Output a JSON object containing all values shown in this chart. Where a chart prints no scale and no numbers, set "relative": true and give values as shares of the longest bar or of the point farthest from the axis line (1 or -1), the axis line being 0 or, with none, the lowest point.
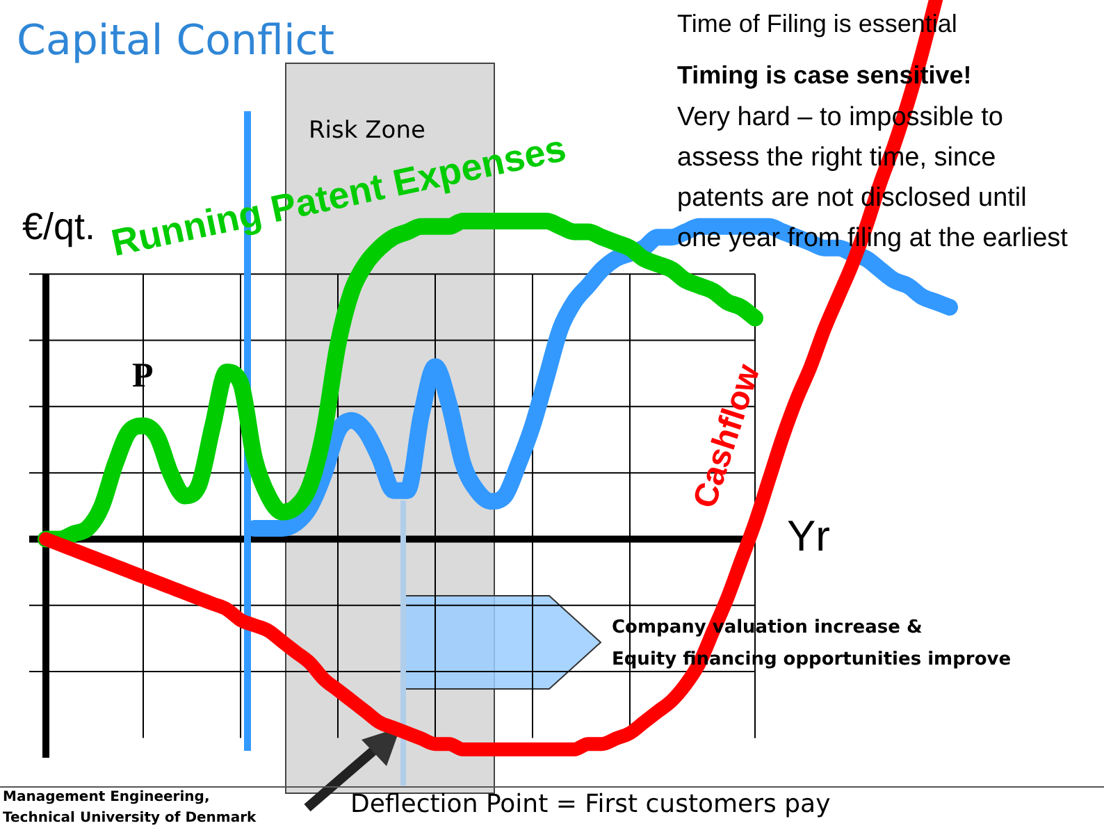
{
  "chart_data": {
    "type": "line",
    "title": "Capital Conflict",
    "xlabel": "Yr",
    "ylabel": "€/qt.",
    "relative": true,
    "legend": false,
    "marker": "none",
    "line_style": "solid",
    "categories": [
      null,
      null,
      null,
      null,
      null,
      null,
      null,
      null,
      null,
      null,
      null,
      null,
      null,
      null,
      null,
      null,
      null,
      null,
      null,
      null,
      null,
      null,
      null,
      null,
      null,
      null,
      null,
      null,
      null,
      null,
      null,
      null,
      null,
      null,
      null,
      null,
      null,
      null,
      null,
      null,
      null,
      null,
      null,
      null,
      null,
      null,
      null,
      null,
      null,
      null,
      null,
      null,
      null,
      null,
      null,
      null,
      null,
      null,
      null,
      null,
      null,
      null,
      null,
      null,
      null,
      null
    ],
    "series": [
      {
        "name": "Running Patent Expenses",
        "color": "#00cc00",
        "values": [
          0.0,
          0.0,
          0.01,
          0.02,
          0.06,
          0.14,
          0.2,
          0.21,
          0.19,
          0.12,
          0.08,
          0.1,
          0.21,
          0.31,
          0.29,
          0.15,
          0.08,
          0.05,
          0.06,
          0.1,
          0.2,
          0.36,
          0.46,
          0.51,
          0.54,
          0.56,
          0.57,
          0.58,
          0.58,
          0.58,
          0.59,
          0.59,
          0.59,
          0.59,
          0.59,
          0.59,
          0.59,
          0.58,
          0.57,
          0.57,
          0.56,
          0.55,
          0.54,
          0.52,
          0.51,
          0.5,
          0.48,
          0.47,
          0.46,
          0.44,
          0.43,
          0.41,
          null,
          null,
          null,
          null,
          null,
          null,
          null,
          null,
          null,
          null,
          null,
          null,
          null,
          null
        ]
      },
      {
        "color": "#3399ff",
        "values": [
          null,
          null,
          null,
          null,
          null,
          null,
          null,
          null,
          null,
          null,
          null,
          null,
          null,
          null,
          null,
          0.02,
          0.02,
          0.02,
          0.03,
          0.06,
          0.12,
          0.2,
          0.22,
          0.2,
          0.15,
          0.09,
          0.09,
          0.23,
          0.32,
          0.25,
          0.14,
          0.09,
          0.07,
          0.08,
          0.14,
          0.21,
          0.3,
          0.39,
          0.44,
          0.47,
          0.5,
          0.52,
          0.53,
          0.54,
          0.56,
          0.56,
          0.57,
          0.58,
          0.58,
          0.58,
          0.58,
          0.58,
          0.58,
          0.57,
          0.56,
          0.55,
          0.54,
          0.54,
          0.53,
          0.52,
          0.5,
          0.48,
          0.47,
          0.45,
          0.44,
          0.43
        ]
      },
      {
        "name": "Cashflow",
        "color": "#ff0000",
        "values": [
          0.0,
          -0.01,
          -0.02,
          -0.03,
          -0.04,
          -0.05,
          -0.06,
          -0.07,
          -0.08,
          -0.09,
          -0.1,
          -0.11,
          -0.12,
          -0.13,
          -0.15,
          -0.16,
          -0.17,
          -0.19,
          -0.21,
          -0.23,
          -0.26,
          -0.28,
          -0.3,
          -0.32,
          -0.34,
          -0.35,
          -0.36,
          -0.37,
          -0.38,
          -0.38,
          -0.39,
          -0.39,
          -0.39,
          -0.39,
          -0.39,
          -0.39,
          -0.39,
          -0.39,
          -0.39,
          -0.38,
          -0.38,
          -0.37,
          -0.36,
          -0.34,
          -0.32,
          -0.3,
          -0.27,
          -0.23,
          -0.17,
          -0.11,
          -0.04,
          0.03,
          0.11,
          0.19,
          0.26,
          0.32,
          0.39,
          0.45,
          0.51,
          0.58,
          0.66,
          0.73,
          0.81,
          0.9,
          1.0,
          null
        ]
      }
    ],
    "annotations": [
      "P",
      "Time of Filing is essential",
      "Timing is case sensitive!",
      "Very hard – to impossible to assess the right time, since patents are not disclosed until one year from filing at the earliest",
      "Company valuation increase &\nEquity financing opportunities improve",
      "Deflection Point = First customers pay",
      "Management Engineering,",
      "Technical University of Denmark",
      "Risk Zone"
    ]
  }
}
